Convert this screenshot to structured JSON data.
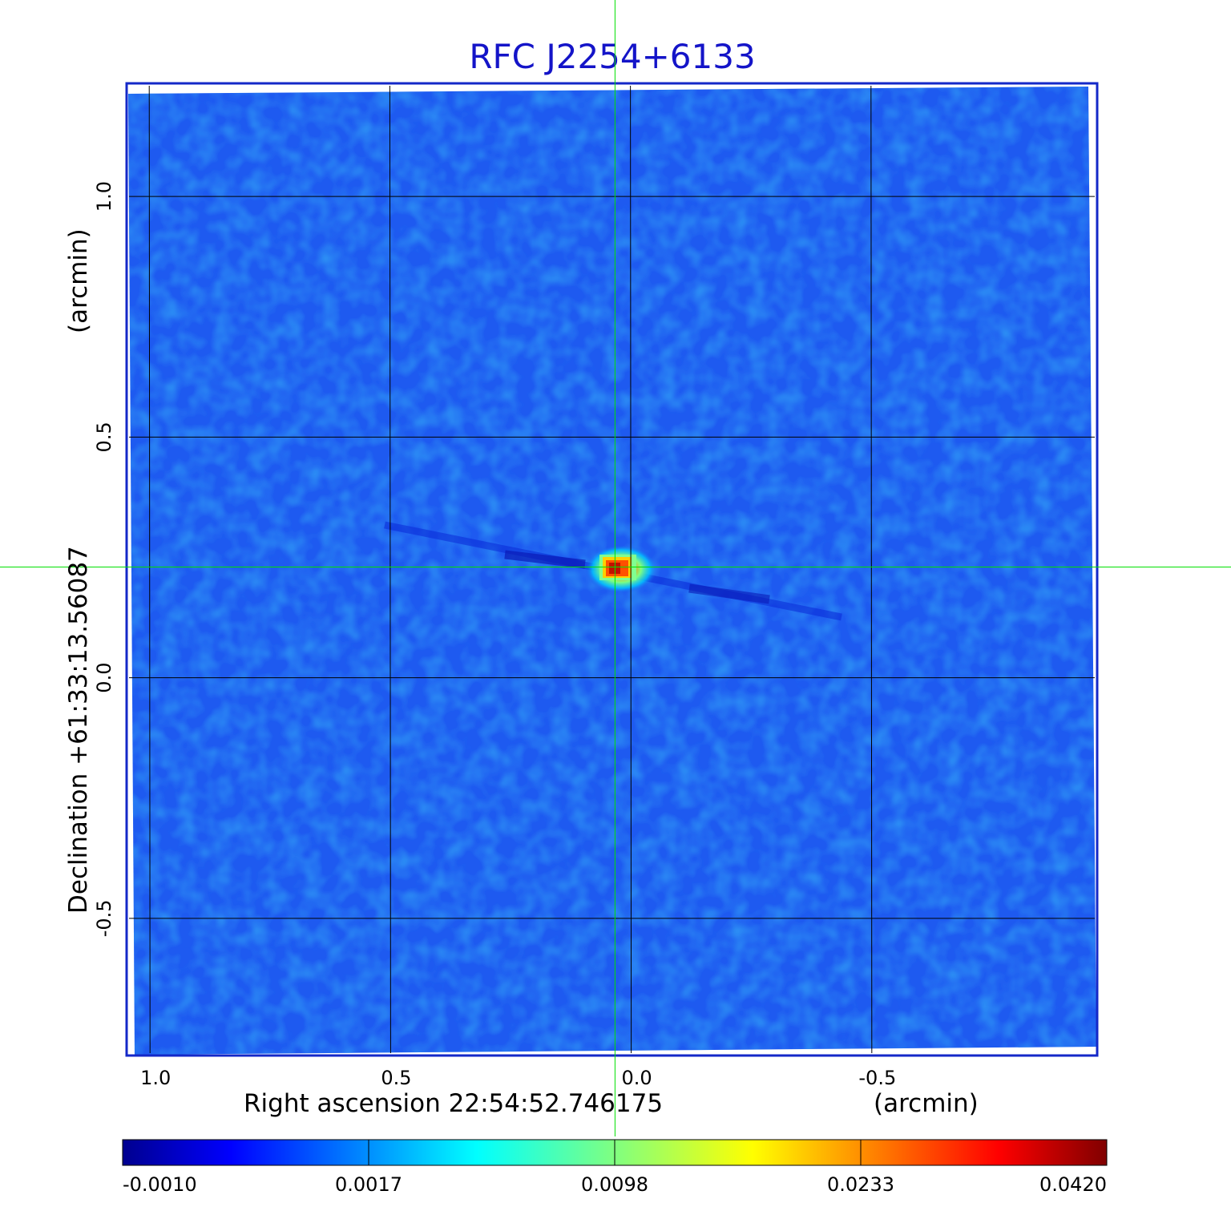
{
  "chart_data": {
    "type": "heatmap",
    "title": "RFC J2254+6133",
    "xlabel": "Right ascension  22:54:52.746175",
    "xunit": "(arcmin)",
    "ylabel": "Declination  +61:33:13.56087",
    "yunit": "(arcmin)",
    "x_ticks": [
      1.0,
      0.5,
      0.0,
      -0.5
    ],
    "x_tick_labels": [
      "1.0",
      "0.5",
      "0.0",
      "-0.5"
    ],
    "y_ticks": [
      1.0,
      0.5,
      0.0,
      -0.5
    ],
    "y_tick_labels": [
      "1.0",
      "0.5",
      "0.0",
      "-0.5"
    ],
    "xlim": [
      1.047,
      -0.97
    ],
    "ylim": [
      -0.785,
      1.235
    ],
    "grid": true,
    "crosshair": {
      "x": 0.032,
      "y": 0.23
    },
    "source_peak": {
      "x": 0.025,
      "y": 0.228,
      "value": 0.042
    },
    "colorbar": {
      "colormap": "jet",
      "tick_labels": [
        "-0.0010",
        "0.0017",
        "0.0098",
        "0.0233",
        "0.0420"
      ],
      "range": [
        -0.001,
        0.042
      ]
    },
    "colors": {
      "title": "#1414c8",
      "frame": "#1428c8",
      "background_map": "#1e5af0",
      "crosshair": "#00e000",
      "grid": "#000000"
    }
  }
}
